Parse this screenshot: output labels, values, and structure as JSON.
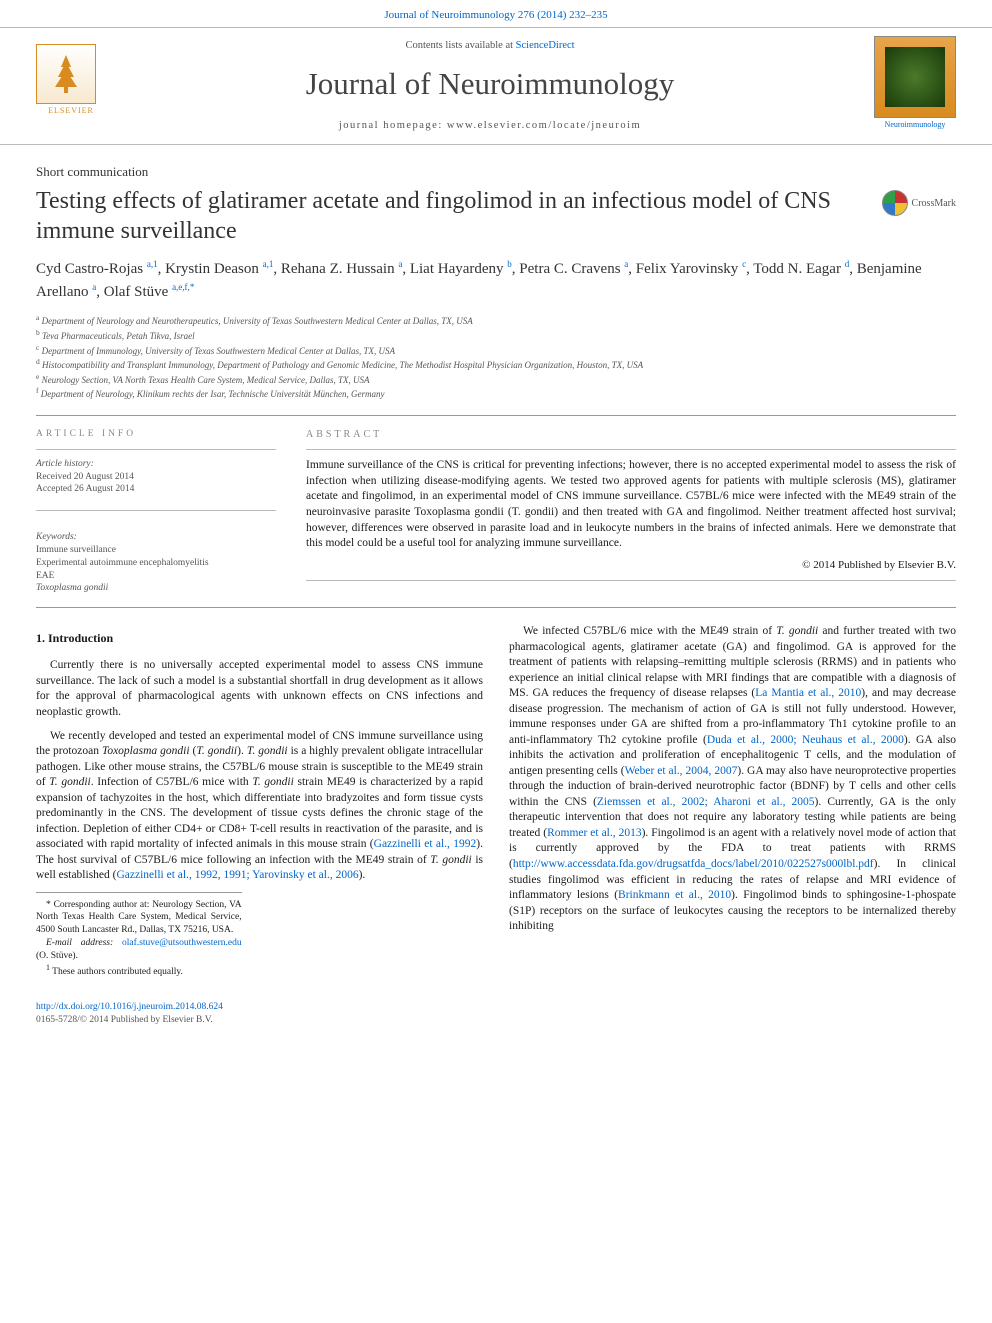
{
  "journal_header_link": "Journal of Neuroimmunology 276 (2014) 232–235",
  "contents_line_pre": "Contents lists available at ",
  "contents_line_link": "ScienceDirect",
  "journal_title": "Journal of Neuroimmunology",
  "homepage_line": "journal homepage: www.elsevier.com/locate/jneuroim",
  "elsevier_brand": "ELSEVIER",
  "journal_cover_caption": "Neuroimmunology",
  "crossmark_label": "CrossMark",
  "article_type": "Short communication",
  "title": "Testing effects of glatiramer acetate and fingolimod in an infectious model of CNS immune surveillance",
  "authors_html_parts": [
    {
      "name": "Cyd Castro-Rojas ",
      "sup": "a,1"
    },
    {
      "name": ", Krystin Deason ",
      "sup": "a,1"
    },
    {
      "name": ", Rehana Z. Hussain ",
      "sup": "a"
    },
    {
      "name": ", Liat Hayardeny ",
      "sup": "b"
    },
    {
      "name": ", Petra C. Cravens ",
      "sup": "a"
    },
    {
      "name": ", Felix Yarovinsky ",
      "sup": "c"
    },
    {
      "name": ", Todd N. Eagar ",
      "sup": "d"
    },
    {
      "name": ", Benjamine Arellano ",
      "sup": "a"
    },
    {
      "name": ", Olaf Stüve ",
      "sup": "a,e,f,",
      "star": "*"
    }
  ],
  "affiliations": [
    {
      "sup": "a",
      "text": " Department of Neurology and Neurotherapeutics, University of Texas Southwestern Medical Center at Dallas, TX, USA"
    },
    {
      "sup": "b",
      "text": " Teva Pharmaceuticals, Petah Tikva, Israel"
    },
    {
      "sup": "c",
      "text": " Department of Immunology, University of Texas Southwestern Medical Center at Dallas, TX, USA"
    },
    {
      "sup": "d",
      "text": " Histocompatibility and Transplant Immunology, Department of Pathology and Genomic Medicine, The Methodist Hospital Physician Organization, Houston, TX, USA"
    },
    {
      "sup": "e",
      "text": " Neurology Section, VA North Texas Health Care System, Medical Service, Dallas, TX, USA"
    },
    {
      "sup": "f",
      "text": " Department of Neurology, Klinikum rechts der Isar, Technische Universität München, Germany"
    }
  ],
  "article_info": {
    "heading": "ARTICLE INFO",
    "history_label": "Article history:",
    "received": "Received 20 August 2014",
    "accepted": "Accepted 26 August 2014",
    "keywords_label": "Keywords:",
    "keywords": [
      "Immune surveillance",
      "Experimental autoimmune encephalomyelitis",
      "EAE",
      "Toxoplasma gondii"
    ]
  },
  "abstract": {
    "heading": "ABSTRACT",
    "text": "Immune surveillance of the CNS is critical for preventing infections; however, there is no accepted experimental model to assess the risk of infection when utilizing disease-modifying agents. We tested two approved agents for patients with multiple sclerosis (MS), glatiramer acetate and fingolimod, in an experimental model of CNS immune surveillance. C57BL/6 mice were infected with the ME49 strain of the neuroinvasive parasite Toxoplasma gondii (T. gondii) and then treated with GA and fingolimod. Neither treatment affected host survival; however, differences were observed in parasite load and in leukocyte numbers in the brains of infected animals. Here we demonstrate that this model could be a useful tool for analyzing immune surveillance.",
    "copyright": "© 2014 Published by Elsevier B.V."
  },
  "section1_heading": "1. Introduction",
  "para1": "Currently there is no universally accepted experimental model to assess CNS immune surveillance. The lack of such a model is a substantial shortfall in drug development as it allows for the approval of pharmacological agents with unknown effects on CNS infections and neoplastic growth.",
  "para2_a": "We recently developed and tested an experimental model of CNS immune surveillance using the protozoan ",
  "para2_b": "Toxoplasma gondii",
  "para2_c": " (",
  "para2_d": "T. gondii",
  "para2_e": "). ",
  "para2_f": "T. gondii",
  "para2_g": " is a highly prevalent obligate intracellular pathogen. Like other mouse strains, the C57BL/6 mouse strain is susceptible to the ME49 strain of ",
  "para2_h": "T. gondii",
  "para2_i": ". Infection of C57BL/6 mice with ",
  "para2_j": "T. gondii",
  "para2_k": " strain ME49 is characterized by a rapid expansion of tachyzoites in the host, which differentiate into bradyzoites and form tissue cysts predominantly in the CNS. The development of tissue cysts defines the chronic stage of the infection. Depletion of either CD4+ or CD8+ T-cell results in reactivation of the parasite, and is associated with rapid mortality of infected animals in this mouse strain (",
  "para2_l": "Gazzinelli et al., 1992",
  "para2_m": "). The host survival of C57BL/6 mice following an infection with the ME49 strain of ",
  "para2_n": "T. gondii",
  "para2_o": " is well established (",
  "para2_p": "Gazzinelli et al., 1992, 1991; Yarovinsky et al., 2006",
  "para2_q": ").",
  "para3_a": "We infected C57BL/6 mice with the ME49 strain of ",
  "para3_b": "T. gondii",
  "para3_c": " and further treated with two pharmacological agents, glatiramer acetate (GA) and fingolimod. GA is approved for the treatment of patients with relapsing–remitting multiple sclerosis (RRMS) and in patients who experience an initial clinical relapse with MRI findings that are compatible with a diagnosis of MS. GA reduces the frequency of disease relapses (",
  "para3_d": "La Mantia et al., 2010",
  "para3_e": "), and may decrease disease progression. The mechanism of action of GA is still not fully understood. However, immune responses under GA are shifted from a pro-inflammatory Th1 cytokine profile to an anti-inflammatory Th2 cytokine profile (",
  "para3_f": "Duda et al., 2000; Neuhaus et al., 2000",
  "para3_g": "). GA also inhibits the activation and proliferation of encephalitogenic T cells, and the modulation of antigen presenting cells (",
  "para3_h": "Weber et al., 2004, 2007",
  "para3_i": "). GA may also have neuroprotective properties through the induction of brain-derived neurotrophic factor (BDNF) by T cells and other cells within the CNS (",
  "para3_j": "Ziemssen et al., 2002; Aharoni et al., 2005",
  "para3_k": "). Currently, GA is the only therapeutic intervention that does not require any laboratory testing while patients are being treated (",
  "para3_l": "Rommer et al., 2013",
  "para3_m": "). Fingolimod is an agent with a relatively novel mode of action that is currently approved by the FDA to treat patients with RRMS (",
  "para3_n": "http://www.accessdata.fda.gov/drugsatfda_docs/label/2010/022527s000lbl.pdf",
  "para3_o": "). In clinical studies fingolimod was efficient in reducing the rates of relapse and MRI evidence of inflammatory lesions (",
  "para3_p": "Brinkmann et al., 2010",
  "para3_q": "). Fingolimod binds to sphingosine-1-phospate (S1P) receptors on the surface of leukocytes causing the receptors to be internalized thereby inhibiting",
  "footnotes": {
    "corr_star": "* ",
    "corr": "Corresponding author at: Neurology Section, VA North Texas Health Care System, Medical Service, 4500 South Lancaster Rd., Dallas, TX 75216, USA.",
    "email_label": "E-mail address: ",
    "email": "olaf.stuve@utsouthwestern.edu",
    "email_who": " (O. Stüve).",
    "note1_sup": "1",
    "note1": " These authors contributed equally."
  },
  "bottom": {
    "doi": "http://dx.doi.org/10.1016/j.jneuroim.2014.08.624",
    "issn": "0165-5728/© 2014 Published by Elsevier B.V."
  },
  "colors": {
    "link": "#0066cc",
    "rule": "#999",
    "muted": "#555",
    "elsevier_orange": "#d88b1f"
  }
}
